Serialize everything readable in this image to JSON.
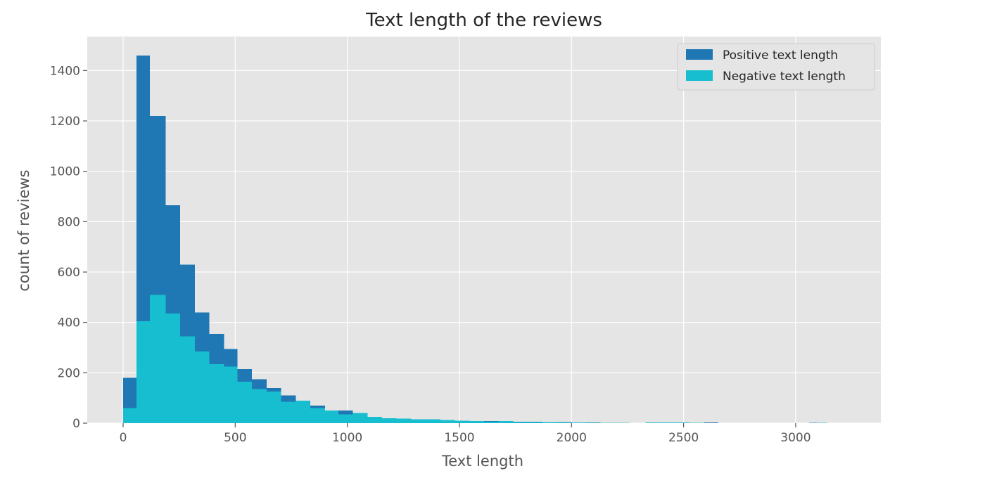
{
  "chart_data": {
    "type": "bar",
    "title": "Text length of the reviews",
    "xlabel": "Text length",
    "ylabel": "count of reviews",
    "xlim": [
      -160,
      3380
    ],
    "ylim": [
      0,
      1535
    ],
    "xticks": [
      0,
      500,
      1000,
      1500,
      2000,
      2500,
      3000
    ],
    "yticks": [
      0,
      200,
      400,
      600,
      800,
      1000,
      1200,
      1400
    ],
    "grid": true,
    "legend_position": "top-right",
    "series": [
      {
        "name": "Positive text length",
        "color": "#1f77b4",
        "bins": [
          [
            0,
            60,
            180
          ],
          [
            60,
            120,
            1460
          ],
          [
            120,
            190,
            1220
          ],
          [
            190,
            255,
            865
          ],
          [
            255,
            320,
            630
          ],
          [
            320,
            385,
            440
          ],
          [
            385,
            450,
            355
          ],
          [
            450,
            510,
            295
          ],
          [
            510,
            575,
            215
          ],
          [
            575,
            640,
            175
          ],
          [
            640,
            705,
            140
          ],
          [
            705,
            770,
            110
          ],
          [
            770,
            835,
            85
          ],
          [
            835,
            900,
            70
          ],
          [
            900,
            960,
            45
          ],
          [
            960,
            1025,
            50
          ],
          [
            1025,
            1090,
            35
          ],
          [
            1090,
            1155,
            25
          ],
          [
            1155,
            1220,
            20
          ],
          [
            1220,
            1285,
            18
          ],
          [
            1285,
            1350,
            15
          ],
          [
            1350,
            1415,
            12
          ],
          [
            1415,
            1480,
            10
          ],
          [
            1480,
            1545,
            10
          ],
          [
            1545,
            1610,
            8
          ],
          [
            1610,
            1675,
            8
          ],
          [
            1675,
            1740,
            6
          ],
          [
            1740,
            1805,
            5
          ],
          [
            1805,
            1870,
            5
          ],
          [
            1870,
            1935,
            4
          ],
          [
            1935,
            2000,
            4
          ],
          [
            2000,
            2065,
            3
          ],
          [
            2065,
            2130,
            3
          ],
          [
            2130,
            2195,
            2
          ],
          [
            2195,
            2260,
            2
          ],
          [
            2330,
            2395,
            2
          ],
          [
            2395,
            2460,
            2
          ],
          [
            2460,
            2525,
            2
          ],
          [
            2525,
            2590,
            2
          ],
          [
            2590,
            2655,
            3
          ],
          [
            3060,
            3130,
            2
          ]
        ]
      },
      {
        "name": "Negative text length",
        "color": "#17becf",
        "bins": [
          [
            0,
            60,
            60
          ],
          [
            60,
            120,
            405
          ],
          [
            120,
            190,
            510
          ],
          [
            190,
            255,
            435
          ],
          [
            255,
            320,
            345
          ],
          [
            320,
            385,
            285
          ],
          [
            385,
            450,
            235
          ],
          [
            450,
            510,
            225
          ],
          [
            510,
            575,
            165
          ],
          [
            575,
            640,
            135
          ],
          [
            640,
            705,
            125
          ],
          [
            705,
            770,
            85
          ],
          [
            770,
            835,
            90
          ],
          [
            835,
            900,
            60
          ],
          [
            900,
            960,
            50
          ],
          [
            960,
            1025,
            35
          ],
          [
            1025,
            1090,
            40
          ],
          [
            1090,
            1155,
            25
          ],
          [
            1155,
            1220,
            20
          ],
          [
            1220,
            1285,
            18
          ],
          [
            1285,
            1350,
            15
          ],
          [
            1350,
            1415,
            15
          ],
          [
            1415,
            1480,
            12
          ],
          [
            1480,
            1545,
            10
          ],
          [
            1545,
            1610,
            8
          ],
          [
            1610,
            1675,
            6
          ],
          [
            1675,
            1740,
            8
          ],
          [
            1740,
            1805,
            4
          ],
          [
            1805,
            1870,
            4
          ],
          [
            1870,
            1935,
            4
          ],
          [
            1935,
            2000,
            3
          ],
          [
            2000,
            2065,
            3
          ],
          [
            2065,
            2130,
            2
          ],
          [
            2130,
            2195,
            2
          ],
          [
            2195,
            2260,
            2
          ],
          [
            2330,
            2395,
            3
          ],
          [
            2395,
            2460,
            3
          ],
          [
            2460,
            2525,
            3
          ],
          [
            2525,
            2590,
            2
          ],
          [
            3100,
            3140,
            2
          ]
        ]
      }
    ]
  }
}
